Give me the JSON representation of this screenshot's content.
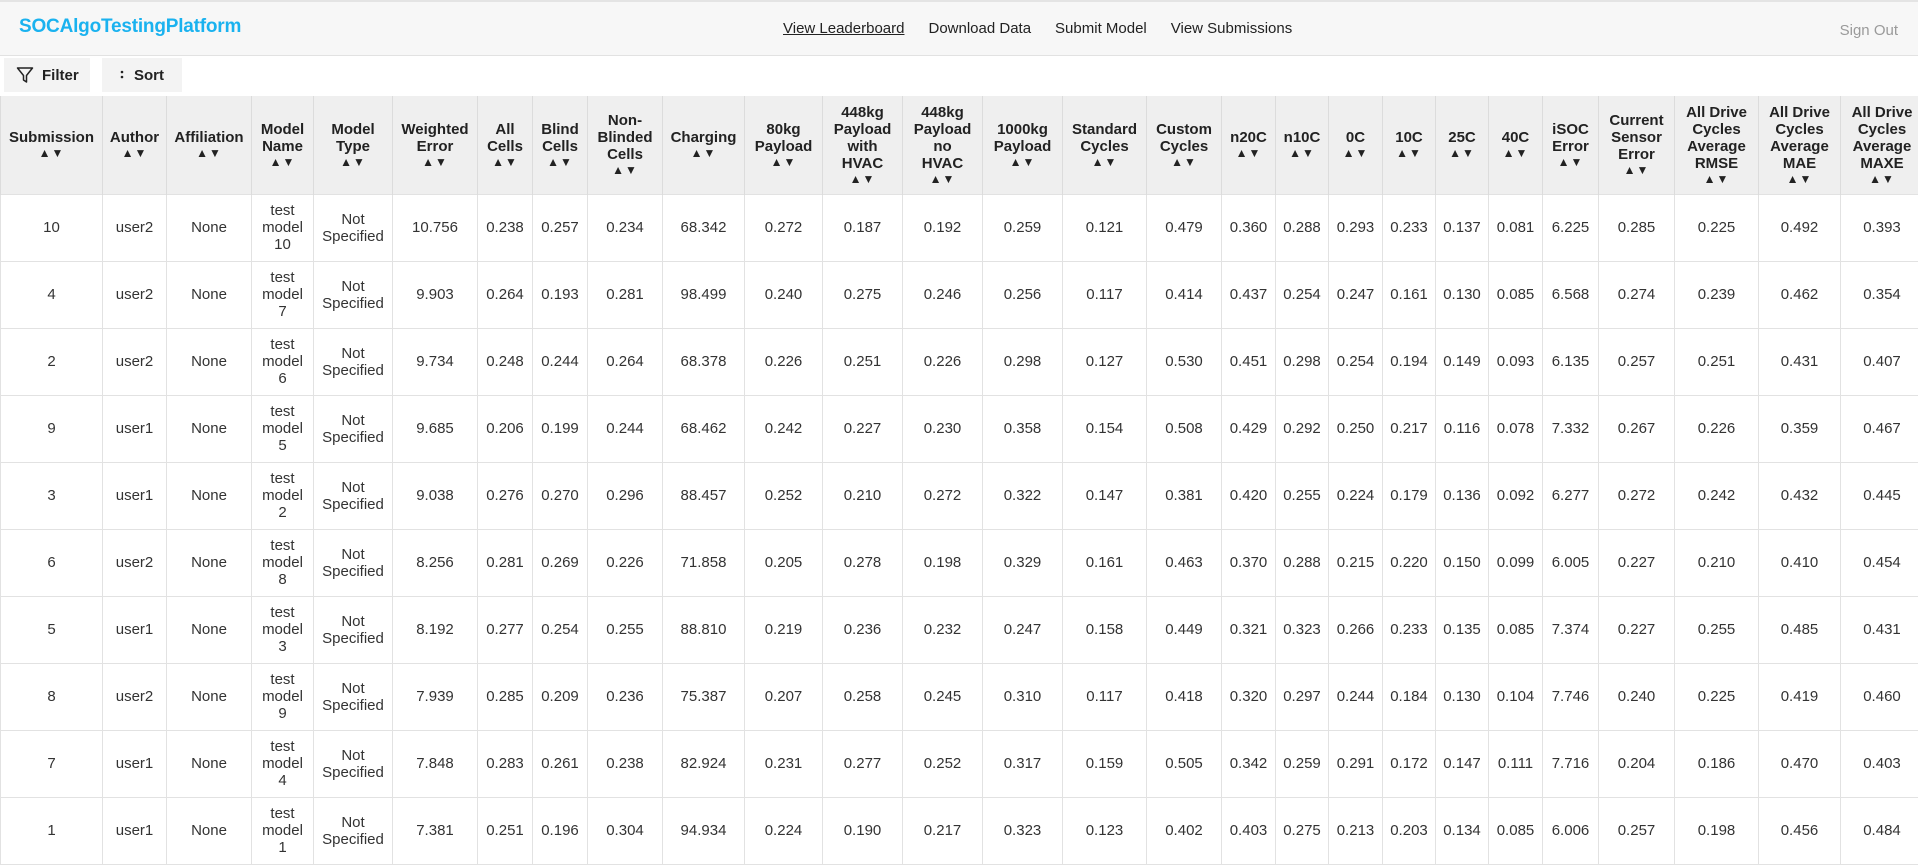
{
  "app": {
    "brand": "SOCAlgoTestingPlatform",
    "sign_out": "Sign Out"
  },
  "nav": [
    {
      "label": "View Leaderboard",
      "active": true
    },
    {
      "label": "Download Data",
      "active": false
    },
    {
      "label": "Submit Model",
      "active": false
    },
    {
      "label": "View Submissions",
      "active": false
    }
  ],
  "toolbar": {
    "filter_label": "Filter",
    "sort_label": "Sort",
    "filter_icon": "funnel-icon",
    "sort_icon": "vertical-dots-icon"
  },
  "sort_arrows": "▲▼",
  "columns": [
    [
      "Submission"
    ],
    [
      "Author"
    ],
    [
      "Affiliation"
    ],
    [
      "Model",
      "Name"
    ],
    [
      "Model",
      "Type"
    ],
    [
      "Weighted",
      "Error"
    ],
    [
      "All",
      "Cells"
    ],
    [
      "Blind",
      "Cells"
    ],
    [
      "Non-",
      "Blinded",
      "Cells"
    ],
    [
      "Charging"
    ],
    [
      "80kg",
      "Payload"
    ],
    [
      "448kg",
      "Payload",
      "with",
      "HVAC"
    ],
    [
      "448kg",
      "Payload",
      "no",
      "HVAC"
    ],
    [
      "1000kg",
      "Payload"
    ],
    [
      "Standard",
      "Cycles"
    ],
    [
      "Custom",
      "Cycles"
    ],
    [
      "n20C"
    ],
    [
      "n10C"
    ],
    [
      "0C"
    ],
    [
      "10C"
    ],
    [
      "25C"
    ],
    [
      "40C"
    ],
    [
      "iSOC",
      "Error"
    ],
    [
      "Current",
      "Sensor",
      "Error"
    ],
    [
      "All Drive",
      "Cycles",
      "Average",
      "RMSE"
    ],
    [
      "All Drive",
      "Cycles",
      "Average",
      "MAE"
    ],
    [
      "All Drive",
      "Cycles",
      "Average",
      "MAXE"
    ]
  ],
  "rows": [
    [
      "10",
      "user2",
      "None",
      [
        "test",
        "model",
        "10"
      ],
      [
        "Not",
        "Specified"
      ],
      "10.756",
      "0.238",
      "0.257",
      "0.234",
      "68.342",
      "0.272",
      "0.187",
      "0.192",
      "0.259",
      "0.121",
      "0.479",
      "0.360",
      "0.288",
      "0.293",
      "0.233",
      "0.137",
      "0.081",
      "6.225",
      "0.285",
      "0.225",
      "0.492",
      "0.393"
    ],
    [
      "4",
      "user2",
      "None",
      [
        "test",
        "model",
        "7"
      ],
      [
        "Not",
        "Specified"
      ],
      "9.903",
      "0.264",
      "0.193",
      "0.281",
      "98.499",
      "0.240",
      "0.275",
      "0.246",
      "0.256",
      "0.117",
      "0.414",
      "0.437",
      "0.254",
      "0.247",
      "0.161",
      "0.130",
      "0.085",
      "6.568",
      "0.274",
      "0.239",
      "0.462",
      "0.354"
    ],
    [
      "2",
      "user2",
      "None",
      [
        "test",
        "model",
        "6"
      ],
      [
        "Not",
        "Specified"
      ],
      "9.734",
      "0.248",
      "0.244",
      "0.264",
      "68.378",
      "0.226",
      "0.251",
      "0.226",
      "0.298",
      "0.127",
      "0.530",
      "0.451",
      "0.298",
      "0.254",
      "0.194",
      "0.149",
      "0.093",
      "6.135",
      "0.257",
      "0.251",
      "0.431",
      "0.407"
    ],
    [
      "9",
      "user1",
      "None",
      [
        "test",
        "model",
        "5"
      ],
      [
        "Not",
        "Specified"
      ],
      "9.685",
      "0.206",
      "0.199",
      "0.244",
      "68.462",
      "0.242",
      "0.227",
      "0.230",
      "0.358",
      "0.154",
      "0.508",
      "0.429",
      "0.292",
      "0.250",
      "0.217",
      "0.116",
      "0.078",
      "7.332",
      "0.267",
      "0.226",
      "0.359",
      "0.467"
    ],
    [
      "3",
      "user1",
      "None",
      [
        "test",
        "model",
        "2"
      ],
      [
        "Not",
        "Specified"
      ],
      "9.038",
      "0.276",
      "0.270",
      "0.296",
      "88.457",
      "0.252",
      "0.210",
      "0.272",
      "0.322",
      "0.147",
      "0.381",
      "0.420",
      "0.255",
      "0.224",
      "0.179",
      "0.136",
      "0.092",
      "6.277",
      "0.272",
      "0.242",
      "0.432",
      "0.445"
    ],
    [
      "6",
      "user2",
      "None",
      [
        "test",
        "model",
        "8"
      ],
      [
        "Not",
        "Specified"
      ],
      "8.256",
      "0.281",
      "0.269",
      "0.226",
      "71.858",
      "0.205",
      "0.278",
      "0.198",
      "0.329",
      "0.161",
      "0.463",
      "0.370",
      "0.288",
      "0.215",
      "0.220",
      "0.150",
      "0.099",
      "6.005",
      "0.227",
      "0.210",
      "0.410",
      "0.454"
    ],
    [
      "5",
      "user1",
      "None",
      [
        "test",
        "model",
        "3"
      ],
      [
        "Not",
        "Specified"
      ],
      "8.192",
      "0.277",
      "0.254",
      "0.255",
      "88.810",
      "0.219",
      "0.236",
      "0.232",
      "0.247",
      "0.158",
      "0.449",
      "0.321",
      "0.323",
      "0.266",
      "0.233",
      "0.135",
      "0.085",
      "7.374",
      "0.227",
      "0.255",
      "0.485",
      "0.431"
    ],
    [
      "8",
      "user2",
      "None",
      [
        "test",
        "model",
        "9"
      ],
      [
        "Not",
        "Specified"
      ],
      "7.939",
      "0.285",
      "0.209",
      "0.236",
      "75.387",
      "0.207",
      "0.258",
      "0.245",
      "0.310",
      "0.117",
      "0.418",
      "0.320",
      "0.297",
      "0.244",
      "0.184",
      "0.130",
      "0.104",
      "7.746",
      "0.240",
      "0.225",
      "0.419",
      "0.460"
    ],
    [
      "7",
      "user1",
      "None",
      [
        "test",
        "model",
        "4"
      ],
      [
        "Not",
        "Specified"
      ],
      "7.848",
      "0.283",
      "0.261",
      "0.238",
      "82.924",
      "0.231",
      "0.277",
      "0.252",
      "0.317",
      "0.159",
      "0.505",
      "0.342",
      "0.259",
      "0.291",
      "0.172",
      "0.147",
      "0.111",
      "7.716",
      "0.204",
      "0.186",
      "0.470",
      "0.403"
    ],
    [
      "1",
      "user1",
      "None",
      [
        "test",
        "model",
        "1"
      ],
      [
        "Not",
        "Specified"
      ],
      "7.381",
      "0.251",
      "0.196",
      "0.304",
      "94.934",
      "0.224",
      "0.190",
      "0.217",
      "0.323",
      "0.123",
      "0.402",
      "0.403",
      "0.275",
      "0.213",
      "0.203",
      "0.134",
      "0.085",
      "6.006",
      "0.257",
      "0.198",
      "0.456",
      "0.484"
    ]
  ]
}
